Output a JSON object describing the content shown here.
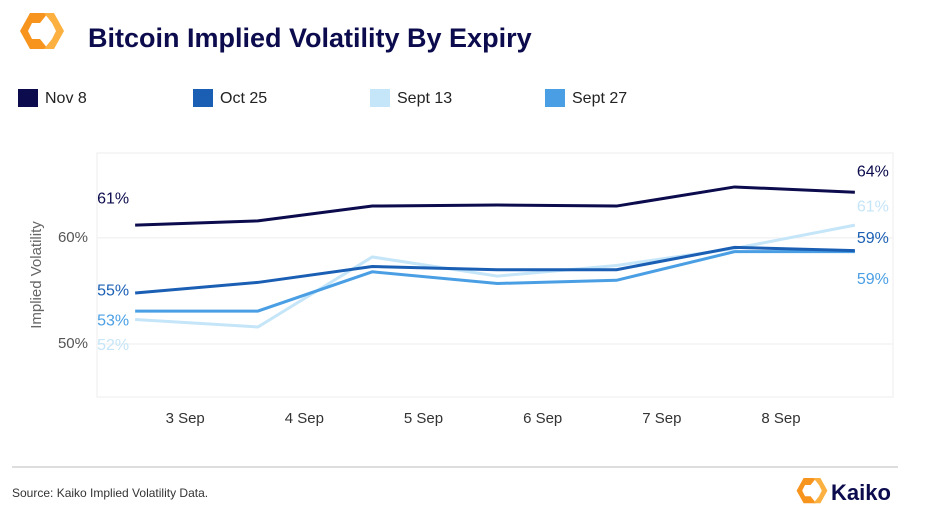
{
  "chart_data": {
    "type": "line",
    "title": "Bitcoin Implied Volatility By Expiry",
    "y_label": "Implied Volatility",
    "source": "Source: Kaiko Implied Volatility Data.",
    "brand": "Kaiko",
    "x": [
      2.58,
      3.61,
      4.57,
      5.62,
      6.62,
      7.61,
      8.62
    ],
    "xlim": [
      2.26,
      8.94
    ],
    "xticks": [
      {
        "value": 3,
        "label": "3 Sep"
      },
      {
        "value": 4,
        "label": "4 Sep"
      },
      {
        "value": 5,
        "label": "5 Sep"
      },
      {
        "value": 6,
        "label": "6 Sep"
      },
      {
        "value": 7,
        "label": "7 Sep"
      },
      {
        "value": 8,
        "label": "8 Sep"
      }
    ],
    "ylim": [
      45,
      68
    ],
    "yticks": [
      {
        "value": 50,
        "label": "50%"
      },
      {
        "value": 60,
        "label": "60%"
      }
    ],
    "grid": true,
    "series": [
      {
        "name": "Nov 8",
        "color": "#0b0b4d",
        "values": [
          61.2,
          61.6,
          63.0,
          63.1,
          63.0,
          64.8,
          64.3
        ],
        "value_labels": [
          "61%",
          null,
          null,
          null,
          null,
          null,
          "64%"
        ]
      },
      {
        "name": "Oct 25",
        "color": "#1a5fb4",
        "values": [
          54.8,
          55.8,
          57.3,
          57.0,
          57.0,
          59.1,
          58.8
        ],
        "value_labels": [
          "55%",
          null,
          null,
          null,
          null,
          null,
          "59%"
        ]
      },
      {
        "name": "Sept 13",
        "color": "#c5e5f8",
        "values": [
          52.3,
          51.6,
          58.2,
          56.4,
          57.4,
          59.0,
          61.2
        ],
        "value_labels": [
          "52%",
          null,
          null,
          null,
          null,
          null,
          "61%"
        ]
      },
      {
        "name": "Sept 27",
        "color": "#4a9fe4",
        "values": [
          53.1,
          53.1,
          56.8,
          55.7,
          56.0,
          58.7,
          58.7
        ],
        "value_labels": [
          "53%",
          null,
          null,
          null,
          null,
          null,
          "59%"
        ]
      }
    ]
  }
}
